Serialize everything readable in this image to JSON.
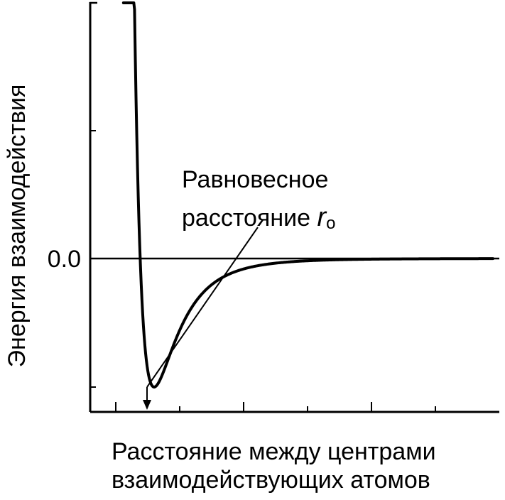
{
  "chart_data": {
    "type": "line",
    "ylabel": "Энергия взаимодействия",
    "xlabel_line1": "Расстояние между центрами",
    "xlabel_line2": "взаимодействующих атомов",
    "y_tick_label": "0.0",
    "annotation": {
      "line1": "Равновесное",
      "line2_prefix": "расстояние ",
      "symbol": "r",
      "subscript": "o"
    },
    "xlim": [
      0.5,
      3.7
    ],
    "ylim": [
      -1.2,
      2.0
    ],
    "potential": {
      "form": "Lennard-Jones",
      "epsilon": 1.0,
      "r0": 1.0,
      "x_start": 0.76,
      "x_end": 3.65
    },
    "series": [
      {
        "name": "",
        "color": "#000000"
      }
    ],
    "grid": false,
    "colors": {
      "line": "#000000",
      "axis": "#000000"
    }
  }
}
